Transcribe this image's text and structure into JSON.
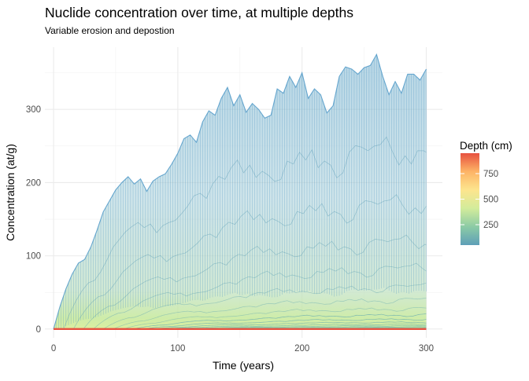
{
  "chart_data": {
    "type": "line",
    "title": "Nuclide concentration over time, at multiple depths",
    "subtitle": "Variable erosion and depostion",
    "xlabel": "Time (years)",
    "ylabel": "Concentration (at/g)",
    "xlim": [
      -7,
      313
    ],
    "ylim": [
      -12,
      385
    ],
    "x_ticks": [
      0,
      100,
      200,
      300
    ],
    "y_ticks": [
      0,
      100,
      200,
      300
    ],
    "grid": true,
    "legend": {
      "title": "Depth (cm)",
      "position": "right",
      "range": [
        50,
        950
      ],
      "ticks": [
        250,
        500,
        750
      ],
      "colors": [
        "#5E9FB8",
        "#8CCBA5",
        "#D3EC9B",
        "#FDE58E",
        "#FDB466",
        "#E7513F"
      ]
    },
    "series_summary": {
      "depth_step_cm": 10,
      "time_step_years": 1
    },
    "surface_envelope": {
      "x": [
        0,
        5,
        10,
        15,
        20,
        25,
        30,
        35,
        40,
        45,
        50,
        55,
        60,
        65,
        70,
        75,
        80,
        85,
        90,
        95,
        100,
        105,
        110,
        115,
        120,
        125,
        130,
        135,
        140,
        145,
        150,
        155,
        160,
        165,
        170,
        175,
        180,
        185,
        190,
        195,
        200,
        205,
        210,
        215,
        220,
        225,
        230,
        235,
        240,
        245,
        250,
        255,
        260,
        265,
        270,
        275,
        280,
        285,
        290,
        295,
        300
      ],
      "y": [
        0,
        30,
        55,
        75,
        90,
        95,
        112,
        135,
        160,
        175,
        190,
        200,
        208,
        198,
        205,
        188,
        202,
        208,
        212,
        225,
        240,
        260,
        265,
        255,
        283,
        298,
        292,
        315,
        330,
        305,
        320,
        296,
        308,
        300,
        288,
        292,
        328,
        322,
        345,
        330,
        350,
        315,
        328,
        320,
        295,
        305,
        345,
        358,
        355,
        348,
        357,
        360,
        375,
        345,
        320,
        338,
        322,
        348,
        348,
        340,
        355
      ]
    }
  }
}
